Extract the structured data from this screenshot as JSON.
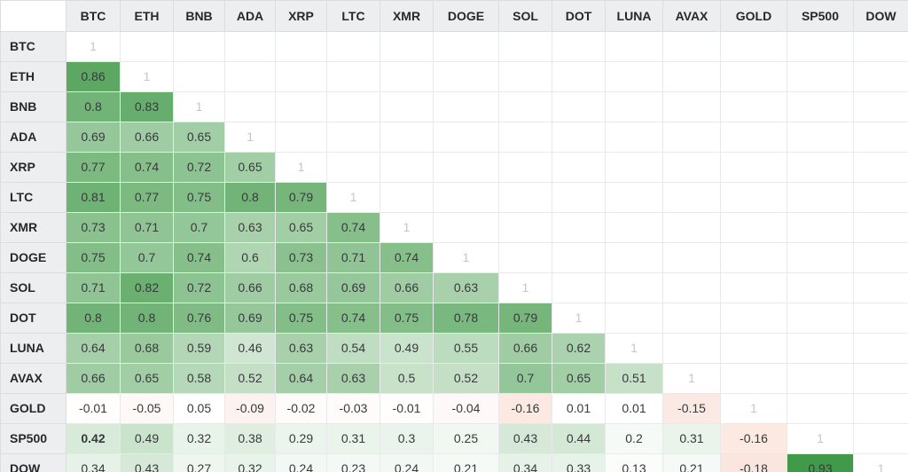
{
  "chart_data": {
    "type": "heatmap",
    "description": "Lower-triangular correlation matrix of asset returns",
    "assets": [
      "BTC",
      "ETH",
      "BNB",
      "ADA",
      "XRP",
      "LTC",
      "XMR",
      "DOGE",
      "SOL",
      "DOT",
      "LUNA",
      "AVAX",
      "GOLD",
      "SP500",
      "DOW"
    ],
    "diagonal_label": "1",
    "rows": [
      {
        "label": "BTC",
        "values": [
          1
        ]
      },
      {
        "label": "ETH",
        "values": [
          0.86,
          1
        ]
      },
      {
        "label": "BNB",
        "values": [
          0.8,
          0.83,
          1
        ]
      },
      {
        "label": "ADA",
        "values": [
          0.69,
          0.66,
          0.65,
          1
        ]
      },
      {
        "label": "XRP",
        "values": [
          0.77,
          0.74,
          0.72,
          0.65,
          1
        ]
      },
      {
        "label": "LTC",
        "values": [
          0.81,
          0.77,
          0.75,
          0.8,
          0.79,
          1
        ]
      },
      {
        "label": "XMR",
        "values": [
          0.73,
          0.71,
          0.7,
          0.63,
          0.65,
          0.74,
          1
        ]
      },
      {
        "label": "DOGE",
        "values": [
          0.75,
          0.7,
          0.74,
          0.6,
          0.73,
          0.71,
          0.74,
          1
        ]
      },
      {
        "label": "SOL",
        "values": [
          0.71,
          0.82,
          0.72,
          0.66,
          0.68,
          0.69,
          0.66,
          0.63,
          1
        ]
      },
      {
        "label": "DOT",
        "values": [
          0.8,
          0.8,
          0.76,
          0.69,
          0.75,
          0.74,
          0.75,
          0.78,
          0.79,
          1
        ]
      },
      {
        "label": "LUNA",
        "values": [
          0.64,
          0.68,
          0.59,
          0.46,
          0.63,
          0.54,
          0.49,
          0.55,
          0.66,
          0.62,
          1
        ]
      },
      {
        "label": "AVAX",
        "values": [
          0.66,
          0.65,
          0.58,
          0.52,
          0.64,
          0.63,
          0.5,
          0.52,
          0.7,
          0.65,
          0.51,
          1
        ]
      },
      {
        "label": "GOLD",
        "values": [
          -0.01,
          -0.05,
          0.05,
          -0.09,
          -0.02,
          -0.03,
          -0.01,
          -0.04,
          -0.16,
          0.01,
          0.01,
          -0.15,
          1
        ]
      },
      {
        "label": "SP500",
        "values": [
          0.42,
          0.49,
          0.32,
          0.38,
          0.29,
          0.31,
          0.3,
          0.25,
          0.43,
          0.44,
          0.2,
          0.31,
          -0.16,
          1
        ]
      },
      {
        "label": "DOW",
        "values": [
          0.34,
          0.43,
          0.27,
          0.32,
          0.24,
          0.23,
          0.24,
          0.21,
          0.34,
          0.33,
          0.13,
          0.21,
          -0.18,
          0.93,
          1
        ]
      }
    ],
    "bold_cells": [
      {
        "row": "SP500",
        "col": "BTC"
      }
    ],
    "colors": {
      "positive_deep": "#238a2c",
      "negative_deep": "#e37448",
      "cell_white": "#ffffff",
      "diagonal_text": "#c3c7ca",
      "value_text": "#37393b",
      "header_text": "#26292c",
      "header_background": "#edeef0",
      "grid_border": "#e7e9ea"
    },
    "legend_position": "none",
    "grid": true
  }
}
